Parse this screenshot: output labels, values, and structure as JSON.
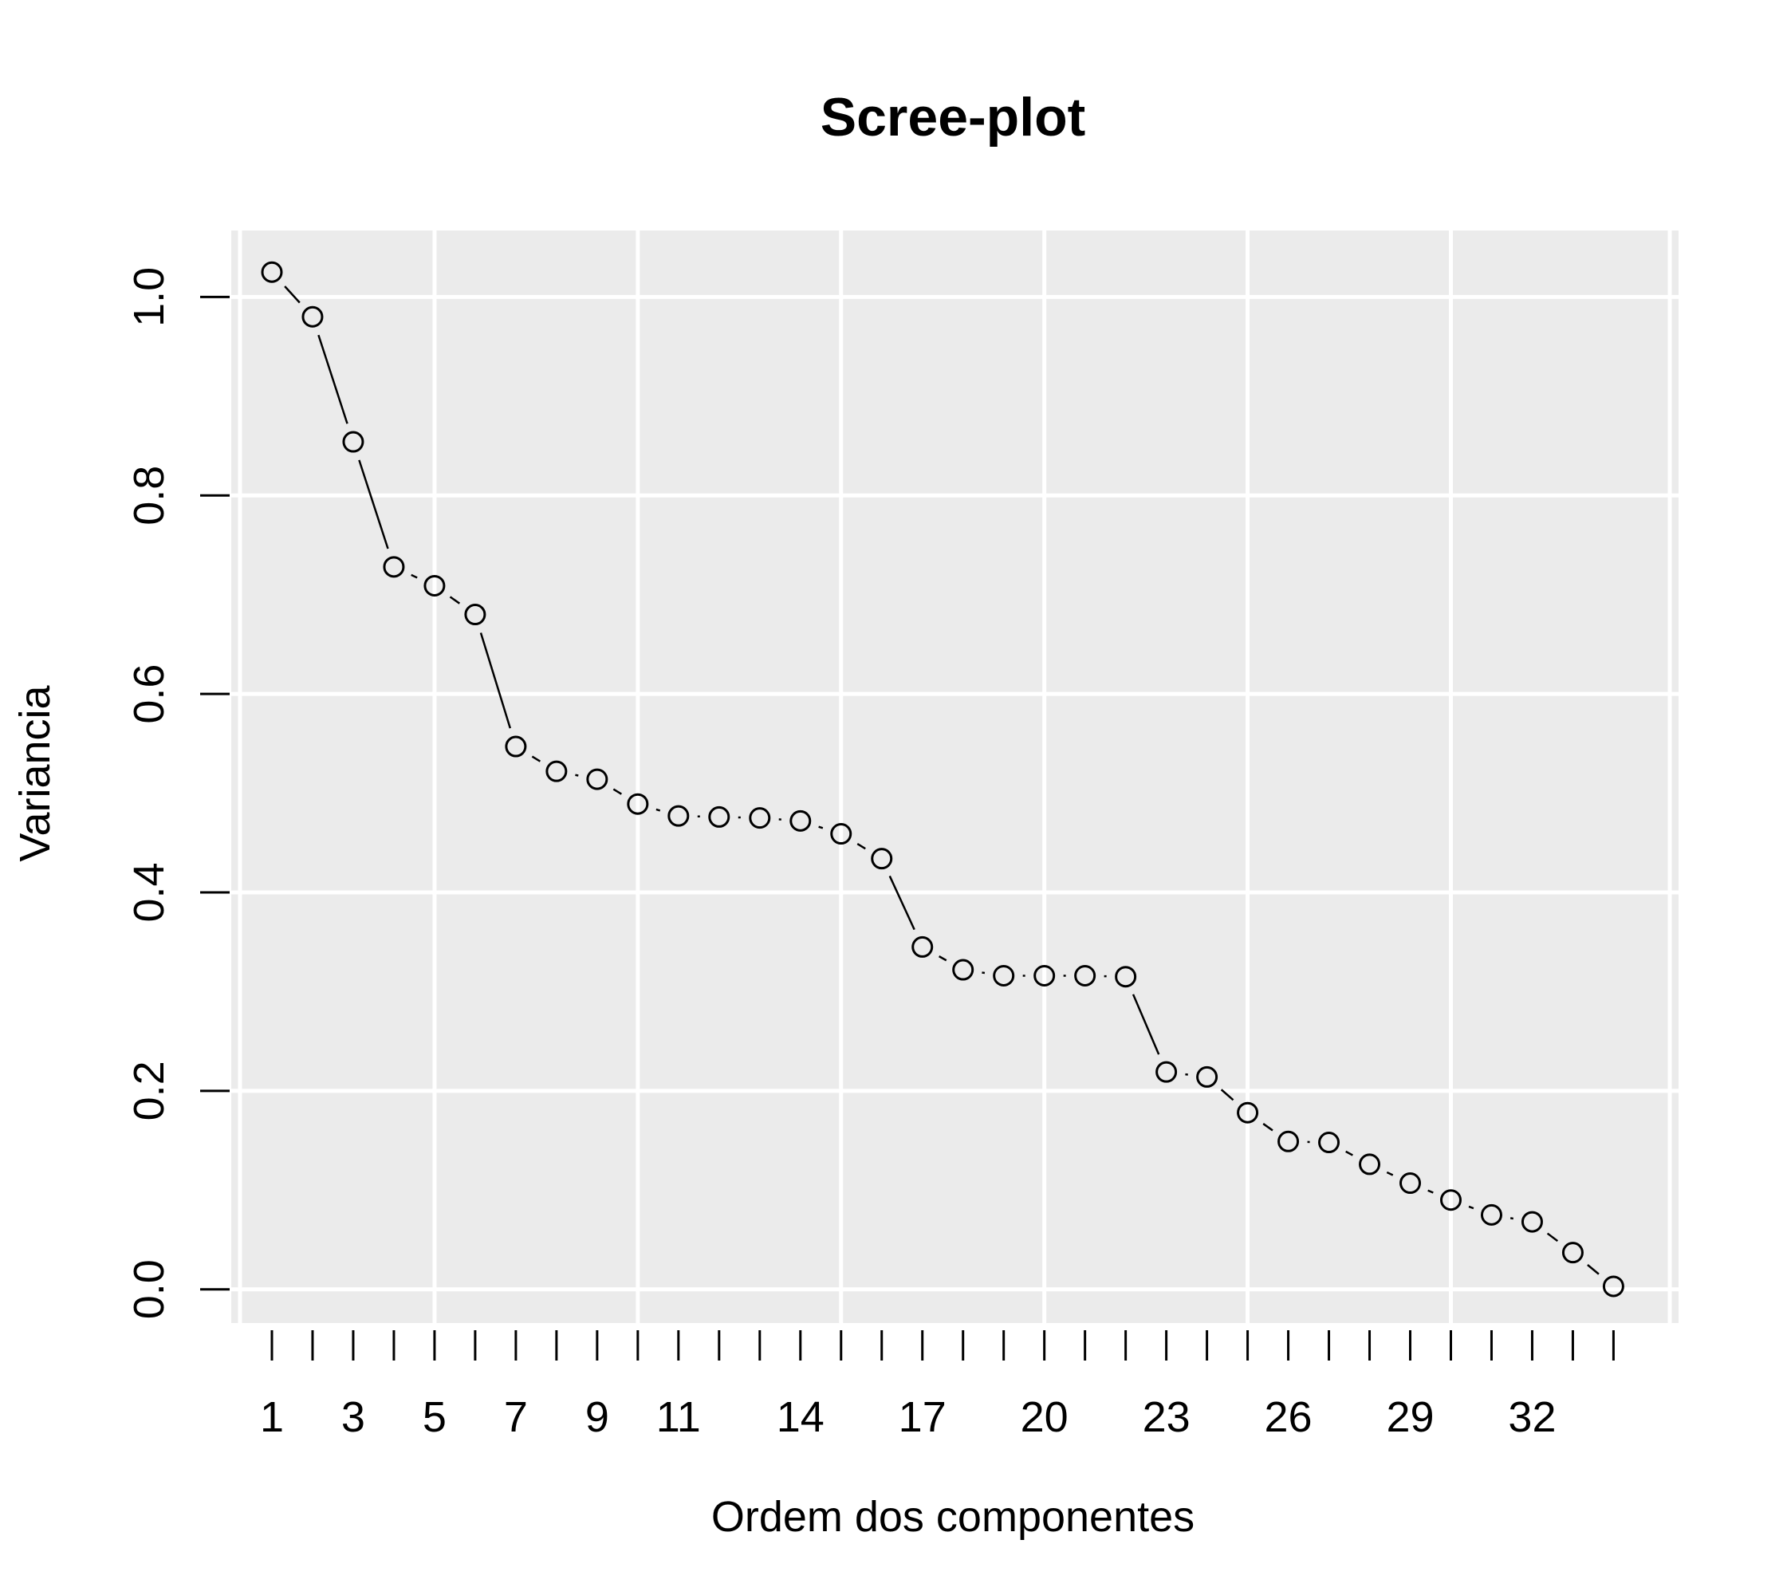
{
  "chart_data": {
    "type": "line",
    "title": "Scree-plot",
    "xlabel": "Ordem dos componentes",
    "ylabel": "Variancia",
    "x": [
      1,
      2,
      3,
      4,
      5,
      6,
      7,
      8,
      9,
      10,
      11,
      12,
      13,
      14,
      15,
      16,
      17,
      18,
      19,
      20,
      21,
      22,
      23,
      24,
      25,
      26,
      27,
      28,
      29,
      30,
      31,
      32,
      33,
      34
    ],
    "values": [
      1.025,
      0.98,
      0.854,
      0.728,
      0.709,
      0.68,
      0.547,
      0.522,
      0.514,
      0.489,
      0.477,
      0.476,
      0.475,
      0.472,
      0.459,
      0.434,
      0.345,
      0.322,
      0.316,
      0.316,
      0.316,
      0.315,
      0.219,
      0.214,
      0.178,
      0.149,
      0.148,
      0.126,
      0.107,
      0.09,
      0.075,
      0.068,
      0.037,
      0.003
    ],
    "xlim": [
      0,
      35.6
    ],
    "ylim": [
      -0.034,
      1.067
    ],
    "xticks": [
      1,
      2,
      3,
      4,
      5,
      6,
      7,
      8,
      9,
      10,
      11,
      12,
      13,
      14,
      15,
      16,
      17,
      18,
      19,
      20,
      21,
      22,
      23,
      24,
      25,
      26,
      27,
      28,
      29,
      30,
      31,
      32,
      33,
      34
    ],
    "xtick_labels": [
      "1",
      "3",
      "5",
      "7",
      "9",
      "11",
      "14",
      "17",
      "20",
      "23",
      "26",
      "29",
      "32"
    ],
    "yticks": [
      "0.0",
      "0.2",
      "0.4",
      "0.6",
      "0.8",
      "1.0"
    ],
    "vgrid": [
      5,
      10,
      15,
      20,
      25,
      30
    ],
    "grid": true,
    "colors": {
      "panel_bg": "#ebebeb",
      "grid": "#ffffff",
      "points": "#000000",
      "lines": "#000000"
    }
  }
}
